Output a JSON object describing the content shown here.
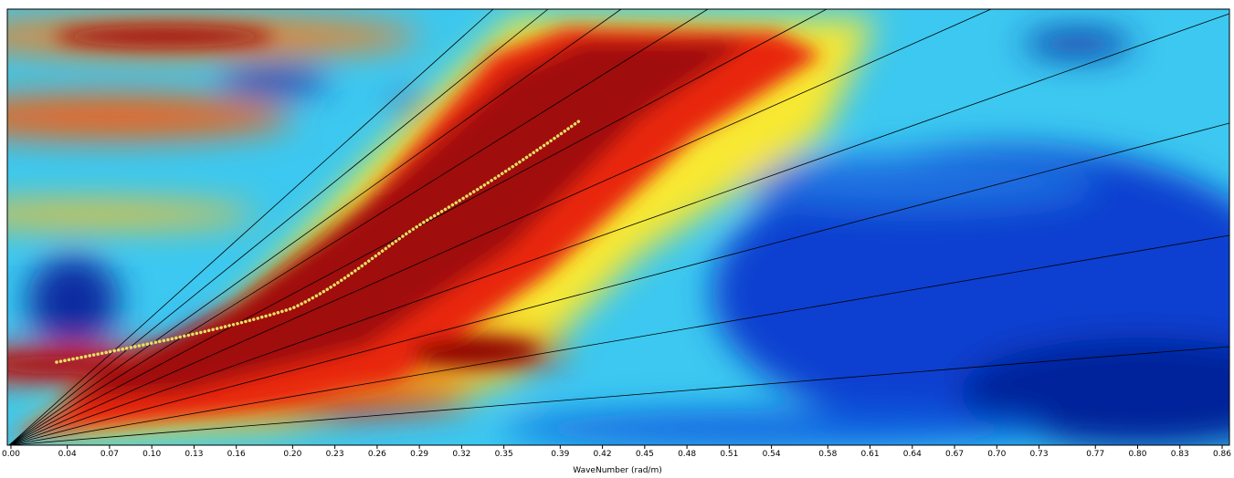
{
  "chart_data": {
    "type": "heatmap",
    "x_label": "WaveNumber (rad/m)",
    "xlim": [
      0,
      0.86
    ],
    "xticks": [
      {
        "value": 0,
        "label": "0.00"
      },
      0.04,
      0.07,
      {
        "value": 0.1,
        "label": "0.10"
      },
      0.13,
      0.16,
      {
        "value": 0.2,
        "label": "0.20"
      },
      0.23,
      0.26,
      0.29,
      0.32,
      0.35,
      0.39,
      0.42,
      0.45,
      0.48,
      0.51,
      0.54,
      0.58,
      0.61,
      0.64,
      0.67,
      {
        "value": 0.7,
        "label": "0.70"
      },
      0.73,
      0.77,
      {
        "value": 0.8,
        "label": "0.80"
      },
      0.83,
      0.86
    ]
  }
}
